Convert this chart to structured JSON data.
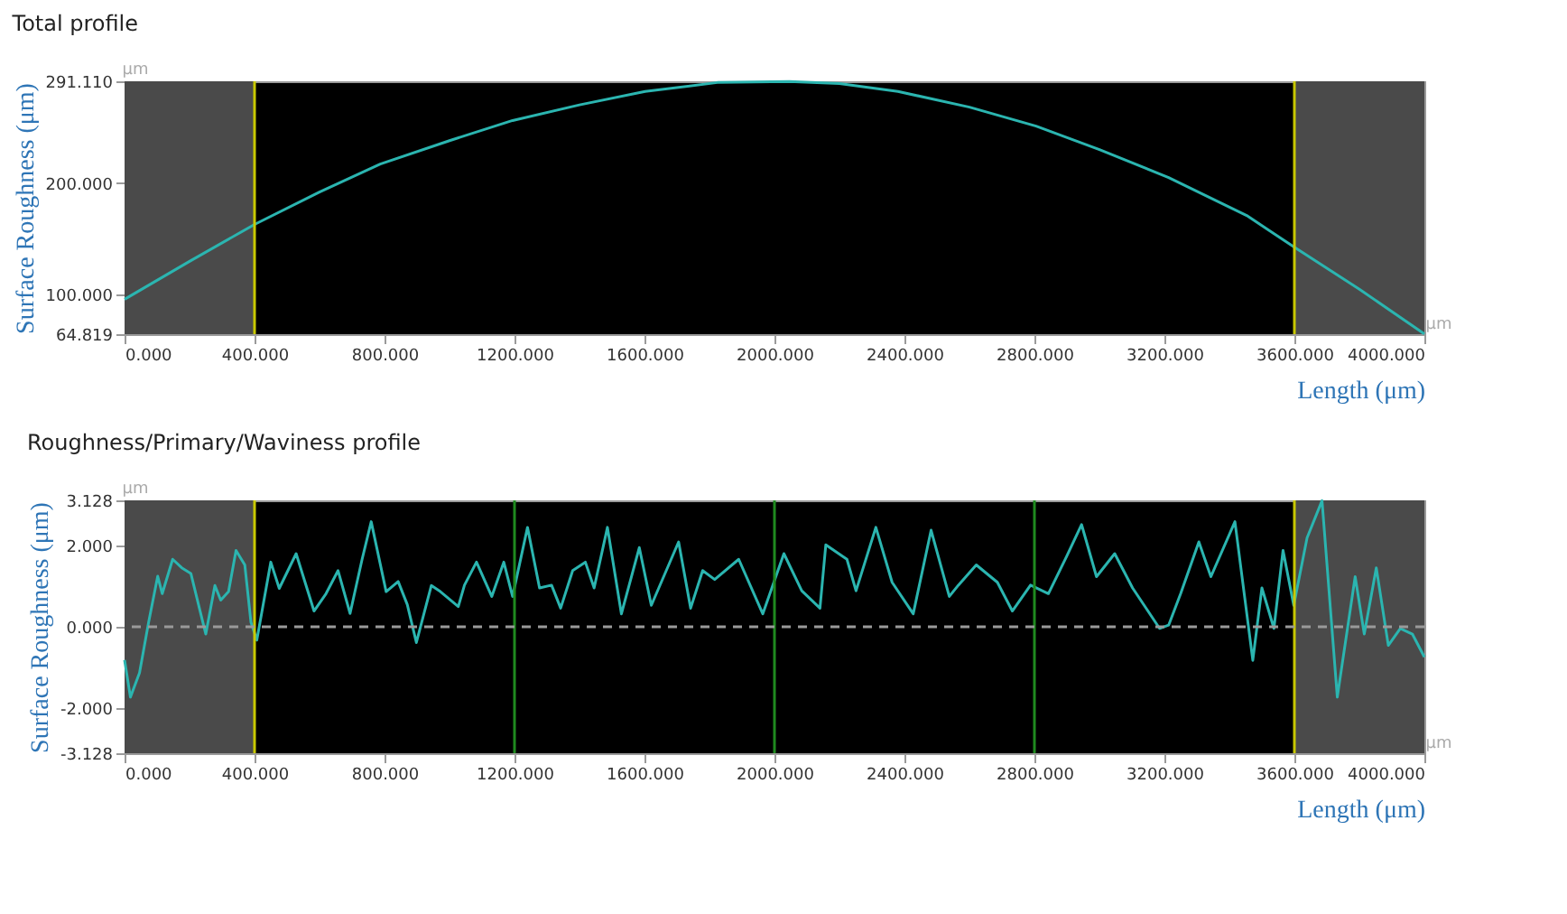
{
  "chart_data": [
    {
      "type": "line",
      "title": "Total profile",
      "xlabel": "Length (μm)",
      "ylabel": "Surface Roughness (μm)",
      "x": [
        0,
        200,
        400,
        600,
        787,
        1000,
        1194,
        1400,
        1602,
        1824,
        2046,
        2200,
        2380,
        2600,
        2805,
        3000,
        3213,
        3453,
        3598,
        3800,
        4000
      ],
      "series": [
        {
          "color": "#2bb5b0",
          "values": [
            96,
            130,
            163,
            192,
            217,
            238,
            256,
            270,
            282,
            290,
            291,
            289,
            282,
            268,
            251,
            230,
            205,
            171,
            143,
            105,
            65
          ]
        }
      ],
      "xlim": [
        0,
        4000
      ],
      "ylim": [
        64.819,
        291.11
      ],
      "xticks": [
        {
          "value": 0,
          "label": "0.000"
        },
        {
          "value": 400,
          "label": "400.000"
        },
        {
          "value": 800,
          "label": "800.000"
        },
        {
          "value": 1200,
          "label": "1200.000"
        },
        {
          "value": 1600,
          "label": "1600.000"
        },
        {
          "value": 2000,
          "label": "2000.000"
        },
        {
          "value": 2400,
          "label": "2400.000"
        },
        {
          "value": 2800,
          "label": "2800.000"
        },
        {
          "value": 3200,
          "label": "3200.000"
        },
        {
          "value": 3600,
          "label": "3600.000"
        },
        {
          "value": 4000,
          "label": "4000.000"
        }
      ],
      "yticks": [
        {
          "value": 64.819,
          "label": "64.819"
        },
        {
          "value": 100,
          "label": "100.000"
        },
        {
          "value": 200,
          "label": "200.000"
        },
        {
          "value": 291.11,
          "label": "291.110"
        }
      ],
      "bands": [
        {
          "axis": "x",
          "from": 0,
          "to": 400,
          "color": "#4a4a4a"
        },
        {
          "axis": "x",
          "from": 3600,
          "to": 4000,
          "color": "#4a4a4a"
        }
      ],
      "ref_lines": [
        {
          "axis": "x",
          "value": 400,
          "color": "#c8c800"
        },
        {
          "axis": "x",
          "value": 3600,
          "color": "#c8c800"
        }
      ],
      "annotations": [
        "µm",
        "µm"
      ]
    },
    {
      "type": "line",
      "title": "Roughness/Primary/Waviness profile",
      "xlabel": "Length (μm)",
      "ylabel": "Surface Roughness (μm)",
      "x": [
        0,
        18,
        46,
        74,
        102,
        116,
        148,
        176,
        204,
        241,
        250,
        278,
        296,
        320,
        343,
        370,
        389,
        407,
        450,
        476,
        528,
        583,
        620,
        657,
        694,
        731,
        759,
        805,
        842,
        870,
        898,
        944,
        972,
        1027,
        1046,
        1083,
        1130,
        1167,
        1194,
        1240,
        1277,
        1314,
        1342,
        1379,
        1418,
        1445,
        1486,
        1529,
        1584,
        1621,
        1705,
        1742,
        1779,
        1816,
        1890,
        1964,
        2029,
        2084,
        2140,
        2158,
        2223,
        2251,
        2312,
        2362,
        2427,
        2482,
        2538,
        2566,
        2621,
        2686,
        2732,
        2788,
        2843,
        2899,
        2945,
        2991,
        3047,
        3102,
        3185,
        3213,
        3250,
        3306,
        3343,
        3417,
        3472,
        3500,
        3537,
        3565,
        3598,
        3639,
        3685,
        3732,
        3787,
        3815,
        3852,
        3889,
        3926,
        3963,
        4000
      ],
      "series": [
        {
          "color": "#2bb5b0",
          "values": [
            -0.82,
            -1.74,
            -1.14,
            0.11,
            1.25,
            0.82,
            1.67,
            1.46,
            1.32,
            0.11,
            -0.18,
            1.02,
            0.66,
            0.87,
            1.89,
            1.53,
            0.11,
            -0.33,
            1.6,
            0.95,
            1.81,
            0.39,
            0.82,
            1.39,
            0.33,
            1.67,
            2.6,
            0.87,
            1.12,
            0.55,
            -0.39,
            1.02,
            0.87,
            0.5,
            1.03,
            1.6,
            0.75,
            1.6,
            0.75,
            2.46,
            0.96,
            1.03,
            0.46,
            1.39,
            1.6,
            0.96,
            2.46,
            0.32,
            1.96,
            0.53,
            2.1,
            0.46,
            1.39,
            1.17,
            1.67,
            0.32,
            1.81,
            0.89,
            0.46,
            2.03,
            1.67,
            0.89,
            2.46,
            1.1,
            0.32,
            2.39,
            0.75,
            1.03,
            1.53,
            1.1,
            0.39,
            1.03,
            0.82,
            1.74,
            2.53,
            1.24,
            1.81,
            0.96,
            -0.04,
            0.04,
            0.82,
            2.1,
            1.24,
            2.6,
            -0.83,
            0.96,
            -0.04,
            1.89,
            0.53,
            2.2,
            3.12,
            -1.74,
            1.24,
            -0.18,
            1.46,
            -0.46,
            -0.04,
            -0.18,
            -0.75
          ]
        }
      ],
      "xlim": [
        0,
        4000
      ],
      "ylim": [
        -3.128,
        3.128
      ],
      "xticks": [
        {
          "value": 0,
          "label": "0.000"
        },
        {
          "value": 400,
          "label": "400.000"
        },
        {
          "value": 800,
          "label": "800.000"
        },
        {
          "value": 1200,
          "label": "1200.000"
        },
        {
          "value": 1600,
          "label": "1600.000"
        },
        {
          "value": 2000,
          "label": "2000.000"
        },
        {
          "value": 2400,
          "label": "2400.000"
        },
        {
          "value": 2800,
          "label": "2800.000"
        },
        {
          "value": 3200,
          "label": "3200.000"
        },
        {
          "value": 3600,
          "label": "3600.000"
        },
        {
          "value": 4000,
          "label": "4000.000"
        }
      ],
      "yticks": [
        {
          "value": -3.128,
          "label": "-3.128"
        },
        {
          "value": -2,
          "label": "-2.000"
        },
        {
          "value": 0,
          "label": "0.000"
        },
        {
          "value": 2,
          "label": "2.000"
        },
        {
          "value": 3.128,
          "label": "3.128"
        }
      ],
      "bands": [
        {
          "axis": "x",
          "from": 0,
          "to": 400,
          "color": "#4a4a4a"
        },
        {
          "axis": "x",
          "from": 3600,
          "to": 4000,
          "color": "#4a4a4a"
        }
      ],
      "ref_lines": [
        {
          "axis": "x",
          "value": 400,
          "color": "#c8c800"
        },
        {
          "axis": "x",
          "value": 1200,
          "color": "#1f8a1f"
        },
        {
          "axis": "x",
          "value": 2000,
          "color": "#1f8a1f"
        },
        {
          "axis": "x",
          "value": 2800,
          "color": "#1f8a1f"
        },
        {
          "axis": "x",
          "value": 3600,
          "color": "#c8c800"
        },
        {
          "axis": "y",
          "value": 0,
          "color": "#9a9a9a",
          "line_style": "dashed"
        }
      ],
      "annotations": [
        "µm",
        "µm"
      ]
    }
  ]
}
